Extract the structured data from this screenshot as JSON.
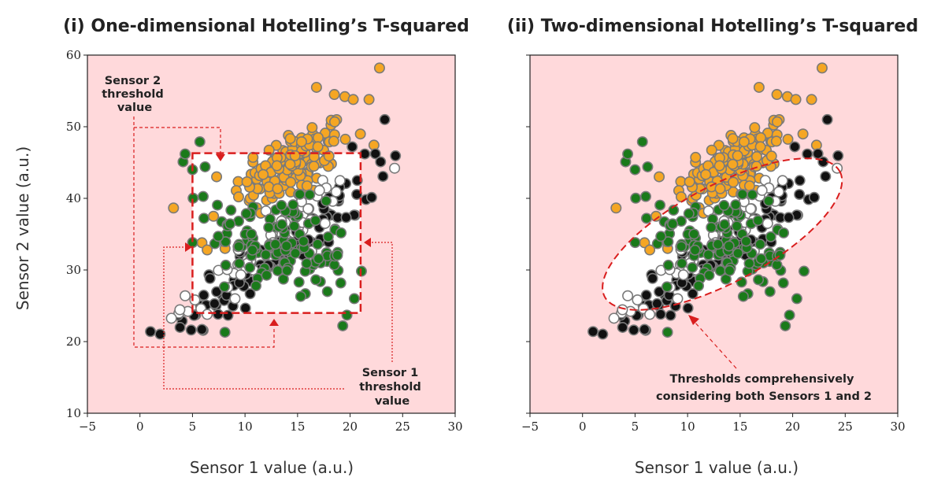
{
  "chart_data": [
    {
      "type": "scatter",
      "title": "(i) One-dimensional Hotelling’s T-squared",
      "xlabel": "Sensor 1 value (a.u.)",
      "ylabel": "Sensor 2 value (a.u.)",
      "xlim": [
        -5,
        30
      ],
      "ylim": [
        10,
        60
      ],
      "xticks": [
        -5,
        0,
        5,
        10,
        15,
        20,
        25,
        30
      ],
      "yticks": [
        10,
        20,
        30,
        40,
        50,
        60
      ],
      "xtick_labels": [
        "−5",
        "0",
        "5",
        "10",
        "15",
        "20",
        "25",
        "30"
      ],
      "ytick_labels": [
        "10",
        "20",
        "30",
        "40",
        "50",
        "60"
      ],
      "background_color": "#ffd9db",
      "normal_region_color": "#ffffff",
      "threshold": {
        "shape": "rectangle",
        "x_range": [
          5,
          21
        ],
        "y_range": [
          24,
          46.3
        ]
      },
      "annotations": [
        {
          "lines": [
            "Sensor 2",
            "threshold",
            "value"
          ]
        },
        {
          "lines": [
            "Sensor 1",
            "threshold",
            "value"
          ]
        }
      ]
    },
    {
      "type": "scatter",
      "title": "(ii) Two-dimensional Hotelling’s T-squared",
      "xlabel": "Sensor 1 value (a.u.)",
      "xlim": [
        -5,
        30
      ],
      "ylim": [
        10,
        60
      ],
      "xticks": [
        -5,
        0,
        5,
        10,
        15,
        20,
        25,
        30
      ],
      "xtick_labels": [
        "−5",
        "0",
        "5",
        "10",
        "15",
        "20",
        "25",
        "30"
      ],
      "background_color": "#ffd9db",
      "normal_region_color": "#ffffff",
      "threshold": {
        "shape": "ellipse",
        "center": [
          13.3,
          35
        ],
        "semi_axes": [
          14.2,
          4.6
        ],
        "angle_deg": 38
      },
      "annotations": [
        {
          "lines": [
            "Thresholds comprehensively",
            "considering both Sensors 1 and 2"
          ]
        }
      ]
    }
  ],
  "series": [
    {
      "color": "#f5a623",
      "dist": {
        "n": 140,
        "cx": 14.5,
        "cy": 44.5,
        "sx": 2.8,
        "sy": 3.2,
        "rho": 0.55
      },
      "extra": [
        [
          16.8,
          55.5
        ],
        [
          18.5,
          54.5
        ],
        [
          19.5,
          54.2
        ],
        [
          20.3,
          53.8
        ],
        [
          22.8,
          58.2
        ],
        [
          21.8,
          53.8
        ],
        [
          7,
          37.5
        ],
        [
          8.1,
          33
        ],
        [
          5.9,
          33.8
        ],
        [
          6.4,
          32.8
        ]
      ]
    },
    {
      "color": "#1a7a1a",
      "dist": {
        "n": 125,
        "cx": 13.2,
        "cy": 33.5,
        "sx": 3.3,
        "sy": 3.6,
        "rho": -0.35
      },
      "extra": [
        [
          5.7,
          47.9
        ],
        [
          4.1,
          45.1
        ],
        [
          4.3,
          46.2
        ],
        [
          19.3,
          22.2
        ],
        [
          19.7,
          23.7
        ],
        [
          20.4,
          26
        ],
        [
          5,
          44
        ],
        [
          6.2,
          44.4
        ]
      ]
    },
    {
      "color": "#111111",
      "dist": {
        "n": 110,
        "cx": 13.5,
        "cy": 33,
        "sx": 4.6,
        "sy": 5.2,
        "rho": 0.92
      },
      "extra": [
        [
          1,
          21.4
        ],
        [
          5.9,
          21.7
        ],
        [
          23.3,
          51
        ],
        [
          22.9,
          45.1
        ],
        [
          20.2,
          47.2
        ],
        [
          21.4,
          46.2
        ],
        [
          6.3,
          25.1
        ],
        [
          7.1,
          25.3
        ]
      ]
    },
    {
      "color": "#ffffff",
      "dist": {
        "n": 55,
        "cx": 12.5,
        "cy": 34,
        "sx": 4.2,
        "sy": 4.8,
        "rho": 0.92
      },
      "extra": [
        [
          4.3,
          26.4
        ],
        [
          5.8,
          24.6
        ],
        [
          6.4,
          23.8
        ]
      ]
    }
  ]
}
